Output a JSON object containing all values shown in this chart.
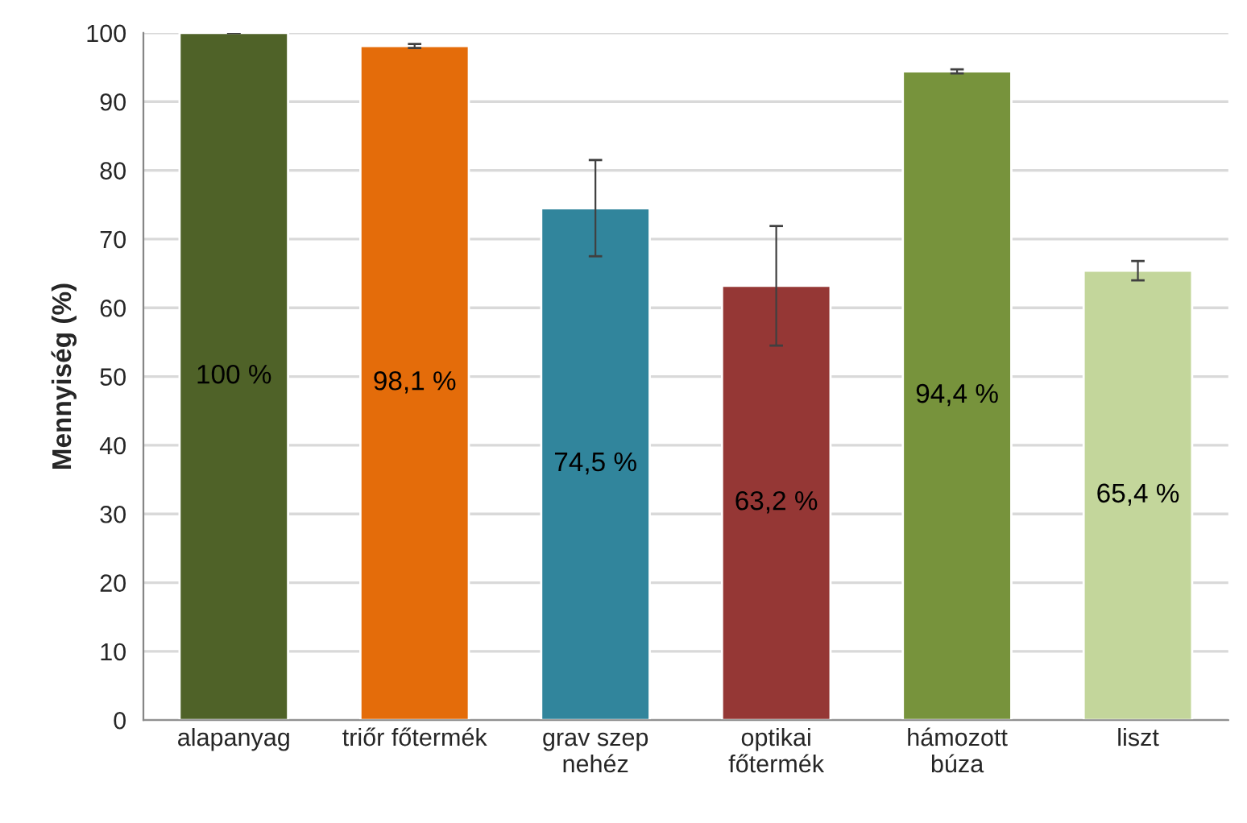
{
  "chart_data": {
    "type": "bar",
    "ylabel": "Mennyiség (%)",
    "categories": [
      "alapanyag",
      "triőr főtermék",
      "grav szep\nnehéz",
      "optikai\nfőtermék",
      "hámozott\nbúza",
      "liszt"
    ],
    "values": [
      100,
      98.1,
      74.5,
      63.2,
      94.4,
      65.4
    ],
    "colors": [
      "#4f6228",
      "#e46c0a",
      "#31859c",
      "#953735",
      "#77933c",
      "#c3d69b"
    ],
    "errors": [
      0,
      0.3,
      7,
      8.7,
      0.3,
      1.4
    ],
    "value_labels": [
      "100 %",
      "98,1 %",
      "74,5 %",
      "63,2 %",
      "94,4 %",
      "65,4 %"
    ],
    "ylim": [
      0,
      100
    ],
    "yticks": [
      0,
      10,
      20,
      30,
      40,
      50,
      60,
      70,
      80,
      90,
      100
    ],
    "grid": "y"
  }
}
